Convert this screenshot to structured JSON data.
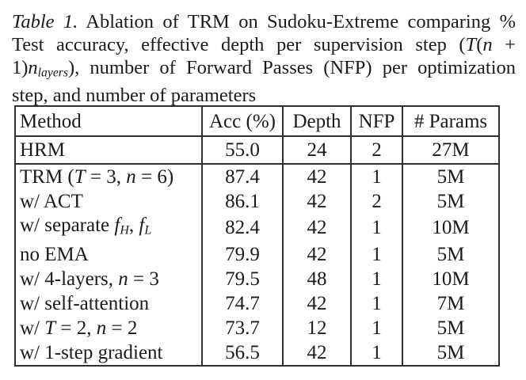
{
  "colors": {
    "ink": "#1b1b1b",
    "rule": "#303030",
    "paper": "#ffffff"
  },
  "caption": {
    "lines": [
      [
        {
          "t": "Table 1.",
          "it": true
        },
        {
          "t": " Ablation of TRM on Sudoku-Extreme comparing %"
        }
      ],
      [
        {
          "t": "Test accuracy, effective depth per supervision step ("
        },
        {
          "t": "T",
          "it": true
        },
        {
          "t": "("
        },
        {
          "t": "n",
          "it": true
        },
        {
          "t": " +"
        }
      ],
      [
        {
          "t": "1)"
        },
        {
          "t": "n",
          "it": true
        },
        {
          "t": "layers",
          "it": true,
          "sub": true
        },
        {
          "t": "), number of Forward Passes (NFP) per optimization"
        }
      ],
      [
        {
          "t": "step, and number of parameters"
        }
      ]
    ]
  },
  "table": {
    "headers": [
      "Method",
      "Acc (%)",
      "Depth",
      "NFP",
      "# Params"
    ],
    "rows": [
      {
        "method": [
          {
            "t": "HRM"
          }
        ],
        "acc": "55.0",
        "depth": "24",
        "nfp": "2",
        "params": "27M"
      },
      {
        "method": [
          {
            "t": "TRM ("
          },
          {
            "t": "T",
            "it": true
          },
          {
            "t": " = 3, "
          },
          {
            "t": "n",
            "it": true
          },
          {
            "t": " = 6)"
          }
        ],
        "acc": "87.4",
        "depth": "42",
        "nfp": "1",
        "params": "5M"
      },
      {
        "method": [
          {
            "t": "w/ ACT"
          }
        ],
        "acc": "86.1",
        "depth": "42",
        "nfp": "2",
        "params": "5M"
      },
      {
        "method": [
          {
            "t": "w/ separate "
          },
          {
            "t": "f",
            "it": true
          },
          {
            "t": "H",
            "it": true,
            "sub": true
          },
          {
            "t": ", "
          },
          {
            "t": "f",
            "it": true
          },
          {
            "t": "L",
            "it": true,
            "sub": true
          }
        ],
        "acc": "82.4",
        "depth": "42",
        "nfp": "1",
        "params": "10M"
      },
      {
        "method": [
          {
            "t": "no EMA"
          }
        ],
        "acc": "79.9",
        "depth": "42",
        "nfp": "1",
        "params": "5M"
      },
      {
        "method": [
          {
            "t": "w/ 4-layers, "
          },
          {
            "t": "n",
            "it": true
          },
          {
            "t": " = 3"
          }
        ],
        "acc": "79.5",
        "depth": "48",
        "nfp": "1",
        "params": "10M"
      },
      {
        "method": [
          {
            "t": "w/ self-attention"
          }
        ],
        "acc": "74.7",
        "depth": "42",
        "nfp": "1",
        "params": "7M"
      },
      {
        "method": [
          {
            "t": "w/ "
          },
          {
            "t": "T",
            "it": true
          },
          {
            "t": " = 2, "
          },
          {
            "t": "n",
            "it": true
          },
          {
            "t": " = 2"
          }
        ],
        "acc": "73.7",
        "depth": "12",
        "nfp": "1",
        "params": "5M"
      },
      {
        "method": [
          {
            "t": "w/ 1-step gradient"
          }
        ],
        "acc": "56.5",
        "depth": "42",
        "nfp": "1",
        "params": "5M"
      }
    ]
  }
}
